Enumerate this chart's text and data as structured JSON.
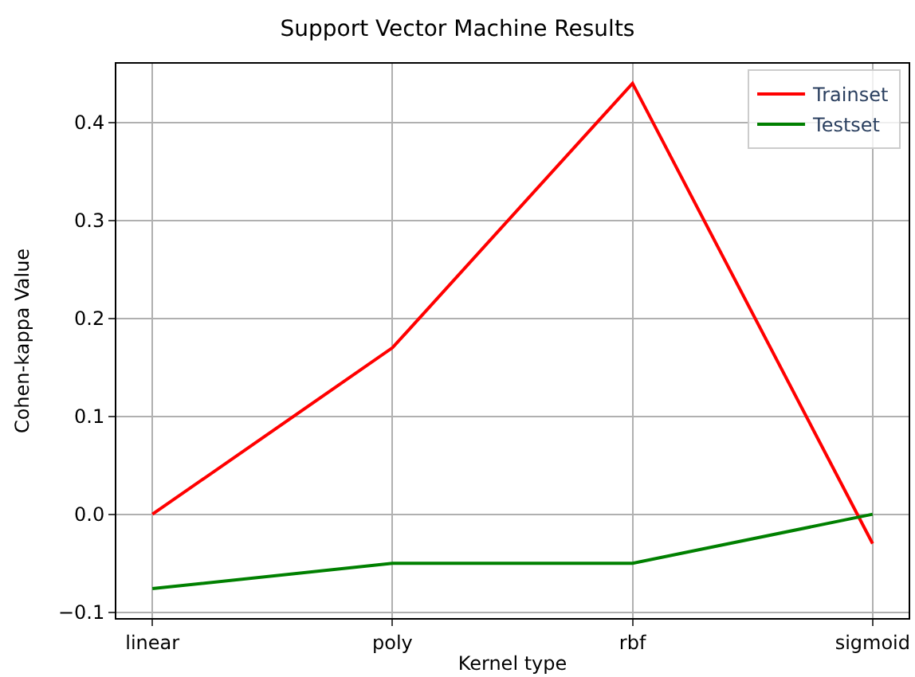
{
  "chart_data": {
    "type": "line",
    "title": "Support Vector Machine Results",
    "xlabel": "Kernel type",
    "ylabel": "Cohen-kappa Value",
    "categories": [
      "linear",
      "poly",
      "rbf",
      "sigmoid"
    ],
    "series": [
      {
        "name": "Trainset",
        "color": "#ff0000",
        "values": [
          0.0,
          0.17,
          0.44,
          -0.03
        ]
      },
      {
        "name": "Testset",
        "color": "#008000",
        "values": [
          -0.076,
          -0.05,
          -0.05,
          0.0
        ]
      }
    ],
    "ylim": [
      -0.106,
      0.46
    ],
    "yticks": [
      {
        "value": -0.1,
        "label": "−0.1"
      },
      {
        "value": 0.0,
        "label": "0.0"
      },
      {
        "value": 0.1,
        "label": "0.1"
      },
      {
        "value": 0.2,
        "label": "0.2"
      },
      {
        "value": 0.3,
        "label": "0.3"
      },
      {
        "value": 0.4,
        "label": "0.4"
      }
    ],
    "grid": true,
    "legend": "top right",
    "marker": "none",
    "line_style": "solid"
  }
}
